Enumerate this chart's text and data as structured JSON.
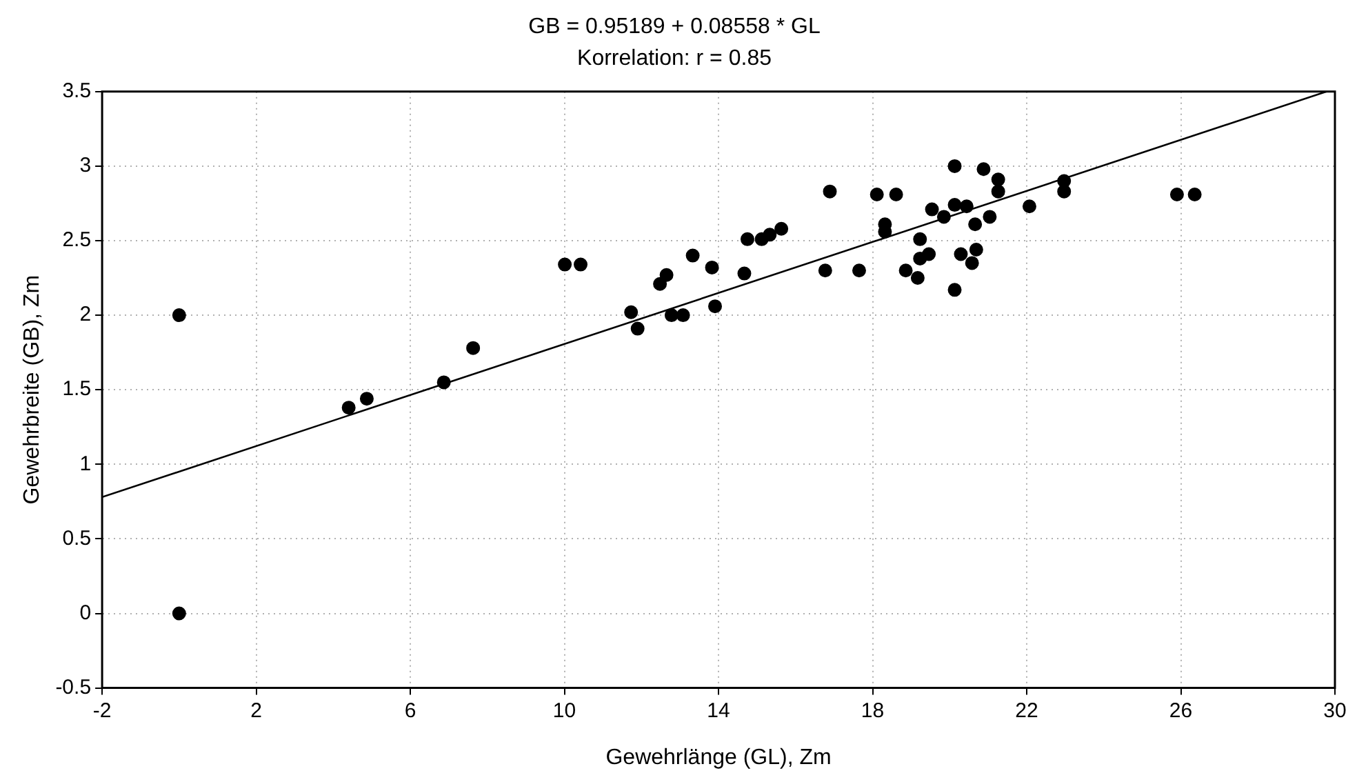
{
  "chart_data": {
    "type": "scatter",
    "title": "GB = 0.95189 + 0.08558 * GL",
    "subtitle": "Korrelation: r = 0.85",
    "xlabel": "Gewehrlänge (GL), Zm",
    "ylabel": "Gewehrbreite (GB), Zm",
    "xlim": [
      -2,
      30
    ],
    "xticks": [
      -2,
      2,
      6,
      10,
      14,
      18,
      22,
      26,
      30
    ],
    "ylim": [
      -0.5,
      3.5
    ],
    "yticks": [
      -0.5,
      0,
      0.5,
      1,
      1.5,
      2,
      2.5,
      3,
      3.5
    ],
    "grid": true,
    "legend": false,
    "marker": "circle",
    "series": [
      {
        "color": "#000000",
        "x": [
          0,
          0,
          4.4,
          4.87,
          6.87,
          7.63,
          10.01,
          10.42,
          11.73,
          11.9,
          12.48,
          12.65,
          12.78,
          13.08,
          13.33,
          13.83,
          13.91,
          14.67,
          14.75,
          15.12,
          15.33,
          15.63,
          16.77,
          17.65,
          16.89,
          18.11,
          18.61,
          18.32,
          18.32,
          18.86,
          19.17,
          19.23,
          19.23,
          19.46,
          19.54,
          19.85,
          20.13,
          20.13,
          20.13,
          20.29,
          20.44,
          20.58,
          20.69,
          20.66,
          20.88,
          21.04,
          21.26,
          21.26,
          22.07,
          22.97,
          22.97,
          25.9,
          26.36
        ],
        "values": [
          2.0,
          0,
          1.38,
          1.44,
          1.55,
          1.78,
          2.34,
          2.34,
          2.02,
          1.91,
          2.21,
          2.27,
          2.0,
          2.0,
          2.4,
          2.32,
          2.06,
          2.28,
          2.51,
          2.51,
          2.54,
          2.58,
          2.3,
          2.3,
          2.83,
          2.81,
          2.81,
          2.61,
          2.56,
          2.3,
          2.25,
          2.51,
          2.38,
          2.41,
          2.71,
          2.66,
          3.0,
          2.74,
          2.17,
          2.41,
          2.73,
          2.35,
          2.44,
          2.61,
          2.98,
          2.66,
          2.91,
          2.83,
          2.73,
          2.9,
          2.83,
          2.81,
          2.81
        ]
      },
      {
        "type": "line",
        "color": "#000000",
        "marker": "none",
        "x": [
          -2,
          29.78
        ],
        "values": [
          0.78,
          3.5
        ]
      }
    ]
  }
}
